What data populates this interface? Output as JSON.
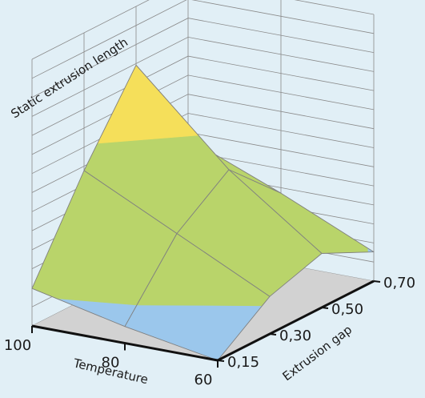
{
  "chart_data": {
    "type": "surface",
    "title": "",
    "zlabel": "Static  extrusion length",
    "xlabel": "Temperature",
    "ylabel": "Extrusion gap",
    "x": [
      "100",
      "80",
      "60"
    ],
    "y": [
      "0,15",
      "0,30",
      "0,50",
      "0,70"
    ],
    "z_relative": [
      [
        0.18,
        0.62,
        1.0,
        0.52
      ],
      [
        0.08,
        0.4,
        0.58,
        0.34
      ],
      [
        0.0,
        0.18,
        0.26,
        0.14
      ]
    ],
    "bands": [
      {
        "name": "low",
        "color": "#9bc7ec"
      },
      {
        "name": "mid",
        "color": "#b9d46a"
      },
      {
        "name": "high",
        "color": "#f5df5a"
      }
    ],
    "grid": true,
    "colors": {
      "background": "#e1eff6",
      "floor": "#d2d2d2",
      "grid": "#8a8a8a",
      "edge": "#808080",
      "axis": "#111111"
    }
  }
}
